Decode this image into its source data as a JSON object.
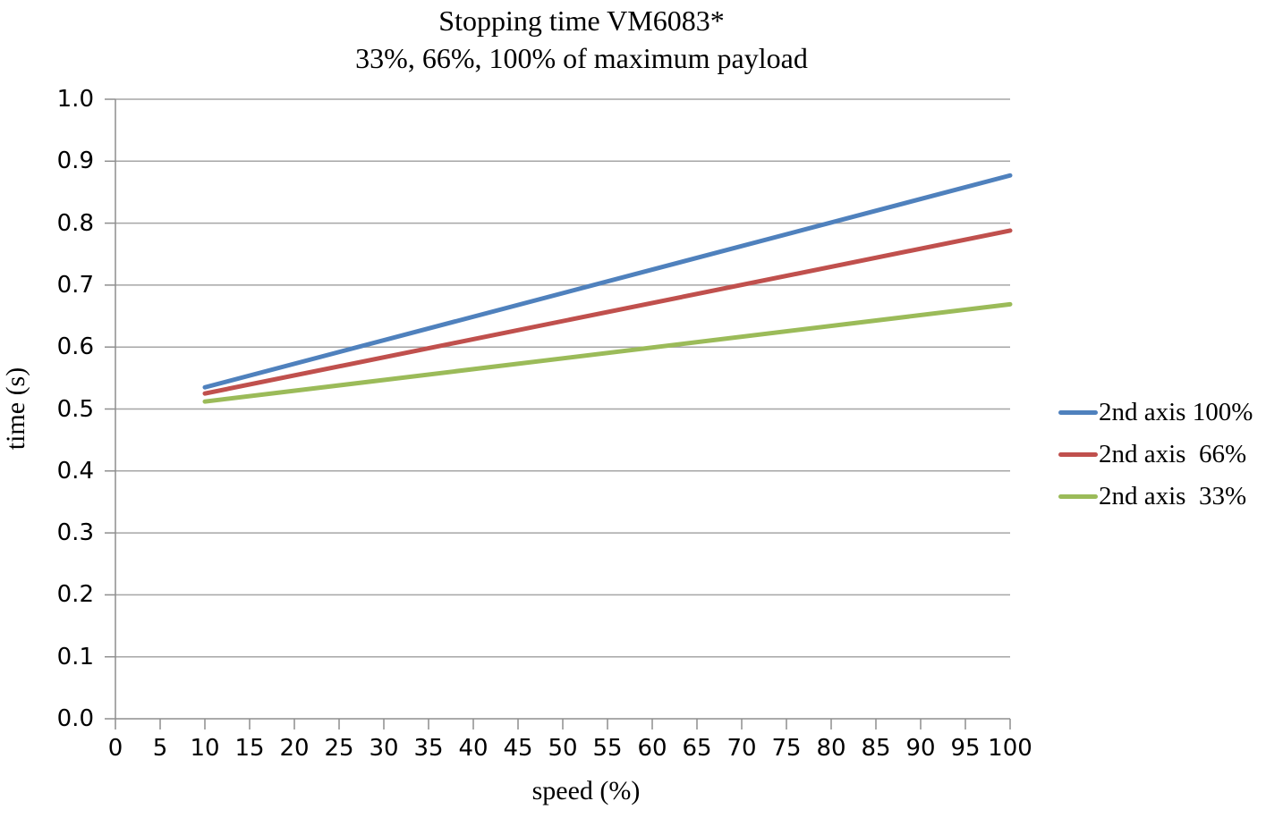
{
  "chart_data": {
    "type": "line",
    "title": "Stopping time VM6083*",
    "subtitle": "33%, 66%, 100% of maximum payload",
    "xlabel": "speed (%)",
    "ylabel": "time (s)",
    "xlim": [
      0,
      100
    ],
    "ylim": [
      0.0,
      1.0
    ],
    "x_ticks": [
      0,
      5,
      10,
      15,
      20,
      25,
      30,
      35,
      40,
      45,
      50,
      55,
      60,
      65,
      70,
      75,
      80,
      85,
      90,
      95,
      100
    ],
    "x_tick_labels": [
      "0",
      "5",
      "10",
      "15",
      "20",
      "25",
      "30",
      "35",
      "40",
      "45",
      "50",
      "55",
      "60",
      "65",
      "70",
      "75",
      "80",
      "85",
      "90",
      "95",
      "100"
    ],
    "y_ticks": [
      0.0,
      0.1,
      0.2,
      0.3,
      0.4,
      0.5,
      0.6,
      0.7,
      0.8,
      0.9,
      1.0
    ],
    "y_tick_labels": [
      "0.0",
      "0.1",
      "0.2",
      "0.3",
      "0.4",
      "0.5",
      "0.6",
      "0.7",
      "0.8",
      "0.9",
      "1.0"
    ],
    "grid": "horizontal-only",
    "legend_position": "right",
    "series": [
      {
        "name": "2nd axis 100%",
        "color": "#4F81BD",
        "x": [
          10,
          100
        ],
        "y": [
          0.535,
          0.877
        ]
      },
      {
        "name": "2nd axis  66%",
        "color": "#C0504D",
        "x": [
          10,
          100
        ],
        "y": [
          0.525,
          0.788
        ]
      },
      {
        "name": "2nd axis  33%",
        "color": "#9BBB59",
        "x": [
          10,
          100
        ],
        "y": [
          0.512,
          0.669
        ]
      }
    ]
  },
  "colors": {
    "axis": "#8E8E8E",
    "gridline": "#A6A6A6",
    "text": "#000000",
    "background": "#FFFFFF"
  }
}
